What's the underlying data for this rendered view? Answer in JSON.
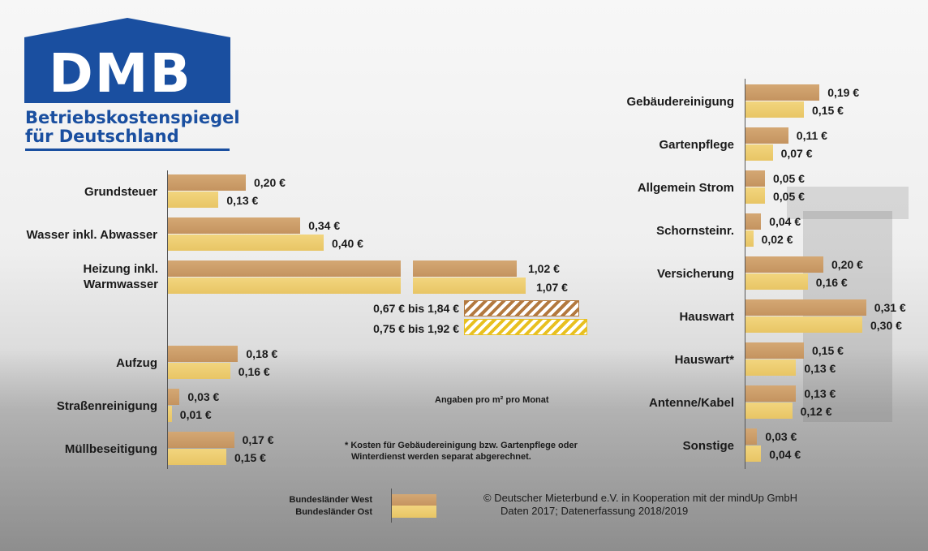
{
  "logo": {
    "text": "DMB",
    "subtitle_line1": "Betriebskostenspiegel",
    "subtitle_line2": "für Deutschland",
    "color": "#1a4fa0"
  },
  "chart_data": {
    "type": "bar",
    "orientation": "horizontal",
    "unit": "€",
    "series": [
      {
        "name": "Bundesländer West",
        "color": "#c4935f"
      },
      {
        "name": "Bundesländer Ost",
        "color": "#e8c565"
      }
    ],
    "left_panel": [
      {
        "category": "Grundsteuer",
        "west": 0.2,
        "ost": 0.13,
        "west_label": "0,20 €",
        "ost_label": "0,13 €"
      },
      {
        "category": "Wasser inkl. Abwasser",
        "west": 0.34,
        "ost": 0.4,
        "west_label": "0,34 €",
        "ost_label": "0,40 €"
      },
      {
        "category": "Heizung inkl. Warmwasser",
        "west": 1.02,
        "ost": 1.07,
        "west_label": "1,02 €",
        "ost_label": "1,07 €",
        "axis_break": true,
        "range_west": [
          0.67,
          1.84
        ],
        "range_ost": [
          0.75,
          1.92
        ],
        "range_west_label": "0,67 € bis 1,84 €",
        "range_ost_label": "0,75 € bis 1,92 €"
      },
      {
        "category": "Aufzug",
        "west": 0.18,
        "ost": 0.16,
        "west_label": "0,18 €",
        "ost_label": "0,16 €"
      },
      {
        "category": "Straßenreinigung",
        "west": 0.03,
        "ost": 0.01,
        "west_label": "0,03 €",
        "ost_label": "0,01 €"
      },
      {
        "category": "Müllbeseitigung",
        "west": 0.17,
        "ost": 0.15,
        "west_label": "0,17 €",
        "ost_label": "0,15 €"
      }
    ],
    "right_panel": [
      {
        "category": "Gebäudereinigung",
        "west": 0.19,
        "ost": 0.15,
        "west_label": "0,19 €",
        "ost_label": "0,15 €"
      },
      {
        "category": "Gartenpflege",
        "west": 0.11,
        "ost": 0.07,
        "west_label": "0,11 €",
        "ost_label": "0,07 €"
      },
      {
        "category": "Allgemein Strom",
        "west": 0.05,
        "ost": 0.05,
        "west_label": "0,05 €",
        "ost_label": "0,05 €"
      },
      {
        "category": "Schornsteinr.",
        "west": 0.04,
        "ost": 0.02,
        "west_label": "0,04 €",
        "ost_label": "0,02 €"
      },
      {
        "category": "Versicherung",
        "west": 0.2,
        "ost": 0.16,
        "west_label": "0,20 €",
        "ost_label": "0,16 €"
      },
      {
        "category": "Hauswart",
        "west": 0.31,
        "ost": 0.3,
        "west_label": "0,31 €",
        "ost_label": "0,30 €"
      },
      {
        "category": "Hauswart*",
        "west": 0.15,
        "ost": 0.13,
        "west_label": "0,15 €",
        "ost_label": "0,13 €"
      },
      {
        "category": "Antenne/Kabel",
        "west": 0.13,
        "ost": 0.12,
        "west_label": "0,13 €",
        "ost_label": "0,12 €"
      },
      {
        "category": "Sonstige",
        "west": 0.03,
        "ost": 0.04,
        "west_label": "0,03 €",
        "ost_label": "0,04 €"
      }
    ],
    "notes": {
      "unit_note": "Angaben pro m² pro Monat",
      "footnote_line1": "* Kosten für Gebäudereinigung bzw. Gartenpflege oder",
      "footnote_line2": "Winterdienst werden separat abgerechnet."
    }
  },
  "legend": {
    "west": "Bundesländer West",
    "ost": "Bundesländer Ost"
  },
  "copyright": {
    "line1": "©  Deutscher Mieterbund e.V. in Kooperation mit der mindUp GmbH",
    "line2": "Daten 2017; Datenerfassung 2018/2019"
  }
}
